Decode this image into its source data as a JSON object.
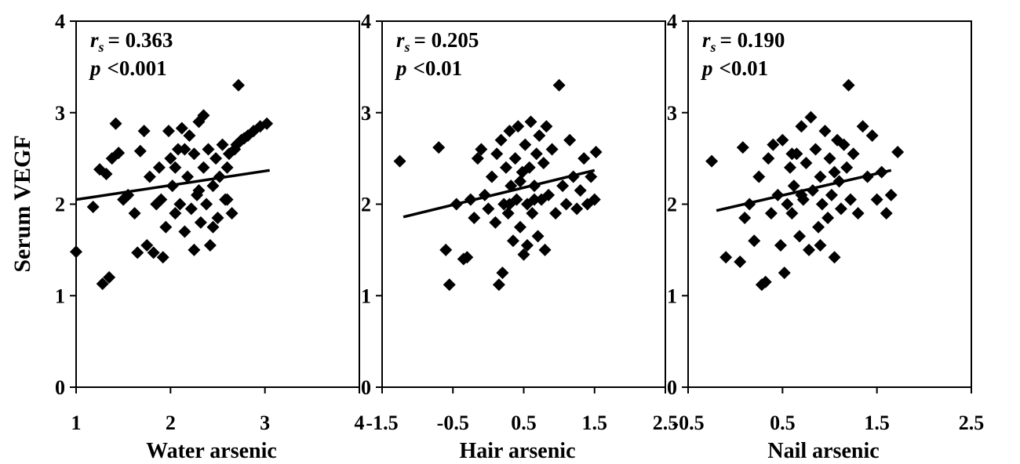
{
  "ylabel": "Serum VEGF",
  "chart_data": [
    {
      "type": "scatter",
      "xlabel": "Water arsenic",
      "xlim": [
        1,
        4
      ],
      "ylim": [
        0,
        4
      ],
      "xticks": [
        "1",
        "2",
        "3",
        "4"
      ],
      "yticks": [
        "0",
        "1",
        "2",
        "3",
        "4"
      ],
      "stats": {
        "r_symbol": "r",
        "r_sub": "s",
        "r_value": "= 0.363",
        "p_symbol": "p",
        "p_value": "<0.001"
      },
      "trendline": {
        "x": [
          1.0,
          3.05
        ],
        "y": [
          2.05,
          2.37
        ]
      },
      "points": [
        [
          1.0,
          1.48
        ],
        [
          1.18,
          1.97
        ],
        [
          1.25,
          2.38
        ],
        [
          1.28,
          1.13
        ],
        [
          1.32,
          2.33
        ],
        [
          1.35,
          1.2
        ],
        [
          1.38,
          2.5
        ],
        [
          1.42,
          2.88
        ],
        [
          1.45,
          2.56
        ],
        [
          1.5,
          2.05
        ],
        [
          1.55,
          2.1
        ],
        [
          1.62,
          1.9
        ],
        [
          1.65,
          1.47
        ],
        [
          1.68,
          2.58
        ],
        [
          1.72,
          2.8
        ],
        [
          1.75,
          1.55
        ],
        [
          1.78,
          2.3
        ],
        [
          1.82,
          1.47
        ],
        [
          1.85,
          2.0
        ],
        [
          1.88,
          2.4
        ],
        [
          1.92,
          1.42
        ],
        [
          1.95,
          1.75
        ],
        [
          1.98,
          2.8
        ],
        [
          2.0,
          2.5
        ],
        [
          2.02,
          2.2
        ],
        [
          2.05,
          1.9
        ],
        [
          2.08,
          2.6
        ],
        [
          2.1,
          2.0
        ],
        [
          2.12,
          2.83
        ],
        [
          2.15,
          1.7
        ],
        [
          2.18,
          2.3
        ],
        [
          2.2,
          2.75
        ],
        [
          2.22,
          1.95
        ],
        [
          2.25,
          2.55
        ],
        [
          2.28,
          2.1
        ],
        [
          2.3,
          2.9
        ],
        [
          2.32,
          1.8
        ],
        [
          2.35,
          2.4
        ],
        [
          2.38,
          2.0
        ],
        [
          2.4,
          2.6
        ],
        [
          2.42,
          1.55
        ],
        [
          2.45,
          2.2
        ],
        [
          2.48,
          2.5
        ],
        [
          2.5,
          1.85
        ],
        [
          2.52,
          2.3
        ],
        [
          2.55,
          2.65
        ],
        [
          2.58,
          2.05
        ],
        [
          2.6,
          2.4
        ],
        [
          2.62,
          2.55
        ],
        [
          2.65,
          1.9
        ],
        [
          2.68,
          2.6
        ],
        [
          2.7,
          2.65
        ],
        [
          2.72,
          3.3
        ],
        [
          2.75,
          2.7
        ],
        [
          2.78,
          2.72
        ],
        [
          2.82,
          2.75
        ],
        [
          2.88,
          2.8
        ],
        [
          2.95,
          2.85
        ],
        [
          3.02,
          2.88
        ],
        [
          2.25,
          1.5
        ],
        [
          2.35,
          2.97
        ],
        [
          2.15,
          2.6
        ],
        [
          1.9,
          2.05
        ],
        [
          2.05,
          2.4
        ],
        [
          2.45,
          1.75
        ],
        [
          2.6,
          2.05
        ],
        [
          2.3,
          2.15
        ]
      ]
    },
    {
      "type": "scatter",
      "xlabel": "Hair arsenic",
      "xlim": [
        -1.5,
        2.5
      ],
      "ylim": [
        0,
        4
      ],
      "xticks": [
        "-1.5",
        "-0.5",
        "0.5",
        "1.5",
        "2.5"
      ],
      "yticks": [
        "0",
        "1",
        "2",
        "3",
        "4"
      ],
      "stats": {
        "r_symbol": "r",
        "r_sub": "s",
        "r_value": "= 0.205",
        "p_symbol": "p",
        "p_value": "<0.01"
      },
      "trendline": {
        "x": [
          -1.2,
          1.5
        ],
        "y": [
          1.86,
          2.37
        ]
      },
      "points": [
        [
          -1.25,
          2.47
        ],
        [
          -0.7,
          2.62
        ],
        [
          -0.55,
          1.12
        ],
        [
          -0.6,
          1.5
        ],
        [
          -0.45,
          2.0
        ],
        [
          -0.35,
          1.4
        ],
        [
          -0.3,
          1.42
        ],
        [
          -0.2,
          1.85
        ],
        [
          -0.25,
          2.05
        ],
        [
          -0.15,
          2.5
        ],
        [
          -0.1,
          2.6
        ],
        [
          -0.05,
          2.1
        ],
        [
          0.0,
          1.95
        ],
        [
          0.05,
          2.3
        ],
        [
          0.1,
          1.8
        ],
        [
          0.12,
          2.55
        ],
        [
          0.15,
          1.12
        ],
        [
          0.18,
          2.7
        ],
        [
          0.2,
          1.25
        ],
        [
          0.22,
          2.0
        ],
        [
          0.25,
          2.4
        ],
        [
          0.28,
          1.9
        ],
        [
          0.3,
          2.8
        ],
        [
          0.32,
          2.2
        ],
        [
          0.35,
          1.6
        ],
        [
          0.38,
          2.5
        ],
        [
          0.4,
          2.05
        ],
        [
          0.42,
          2.85
        ],
        [
          0.45,
          1.75
        ],
        [
          0.48,
          2.35
        ],
        [
          0.5,
          1.45
        ],
        [
          0.52,
          2.65
        ],
        [
          0.55,
          2.0
        ],
        [
          0.58,
          2.4
        ],
        [
          0.6,
          2.9
        ],
        [
          0.62,
          1.9
        ],
        [
          0.65,
          2.2
        ],
        [
          0.68,
          2.55
        ],
        [
          0.7,
          1.65
        ],
        [
          0.72,
          2.75
        ],
        [
          0.75,
          2.05
        ],
        [
          0.78,
          2.45
        ],
        [
          0.8,
          1.5
        ],
        [
          0.82,
          2.85
        ],
        [
          0.85,
          2.1
        ],
        [
          0.9,
          2.6
        ],
        [
          0.95,
          1.9
        ],
        [
          1.0,
          3.3
        ],
        [
          1.05,
          2.2
        ],
        [
          1.1,
          2.0
        ],
        [
          1.15,
          2.7
        ],
        [
          1.2,
          2.3
        ],
        [
          1.25,
          1.95
        ],
        [
          1.3,
          2.15
        ],
        [
          1.35,
          2.5
        ],
        [
          1.4,
          2.0
        ],
        [
          1.45,
          2.3
        ],
        [
          1.5,
          2.05
        ],
        [
          1.52,
          2.57
        ],
        [
          0.45,
          2.25
        ],
        [
          0.55,
          1.55
        ],
        [
          0.3,
          2.0
        ],
        [
          0.65,
          2.05
        ]
      ]
    },
    {
      "type": "scatter",
      "xlabel": "Nail arsenic",
      "xlim": [
        -0.5,
        2.5
      ],
      "ylim": [
        0,
        4
      ],
      "xticks": [
        "-0.5",
        "0.5",
        "1.5",
        "2.5"
      ],
      "yticks": [
        "0",
        "1",
        "2",
        "3",
        "4"
      ],
      "stats": {
        "r_symbol": "r",
        "r_sub": "s",
        "r_value": "= 0.190",
        "p_symbol": "p",
        "p_value": "<0.01"
      },
      "trendline": {
        "x": [
          -0.2,
          1.65
        ],
        "y": [
          1.93,
          2.37
        ]
      },
      "points": [
        [
          -0.25,
          2.47
        ],
        [
          -0.1,
          1.42
        ],
        [
          0.05,
          1.37
        ],
        [
          0.08,
          2.62
        ],
        [
          0.1,
          1.85
        ],
        [
          0.15,
          2.0
        ],
        [
          0.2,
          1.6
        ],
        [
          0.25,
          2.3
        ],
        [
          0.28,
          1.12
        ],
        [
          0.32,
          1.15
        ],
        [
          0.35,
          2.5
        ],
        [
          0.38,
          1.9
        ],
        [
          0.4,
          2.65
        ],
        [
          0.45,
          2.1
        ],
        [
          0.48,
          1.55
        ],
        [
          0.5,
          2.7
        ],
        [
          0.52,
          1.25
        ],
        [
          0.55,
          2.0
        ],
        [
          0.58,
          2.4
        ],
        [
          0.6,
          1.9
        ],
        [
          0.62,
          2.2
        ],
        [
          0.65,
          2.55
        ],
        [
          0.68,
          1.65
        ],
        [
          0.7,
          2.85
        ],
        [
          0.72,
          2.05
        ],
        [
          0.75,
          2.45
        ],
        [
          0.78,
          1.5
        ],
        [
          0.8,
          2.95
        ],
        [
          0.82,
          2.15
        ],
        [
          0.85,
          2.6
        ],
        [
          0.88,
          1.75
        ],
        [
          0.9,
          2.3
        ],
        [
          0.92,
          2.0
        ],
        [
          0.95,
          2.8
        ],
        [
          0.98,
          1.85
        ],
        [
          1.0,
          2.5
        ],
        [
          1.02,
          2.1
        ],
        [
          1.05,
          1.42
        ],
        [
          1.08,
          2.7
        ],
        [
          1.1,
          2.25
        ],
        [
          1.12,
          1.95
        ],
        [
          1.15,
          2.65
        ],
        [
          1.18,
          2.4
        ],
        [
          1.2,
          3.3
        ],
        [
          1.22,
          2.05
        ],
        [
          1.25,
          2.55
        ],
        [
          1.3,
          1.9
        ],
        [
          1.35,
          2.85
        ],
        [
          1.4,
          2.3
        ],
        [
          1.45,
          2.75
        ],
        [
          1.5,
          2.05
        ],
        [
          1.55,
          2.35
        ],
        [
          1.6,
          1.9
        ],
        [
          1.65,
          2.1
        ],
        [
          1.72,
          2.57
        ],
        [
          0.9,
          1.55
        ],
        [
          0.7,
          2.1
        ],
        [
          1.05,
          2.35
        ],
        [
          0.6,
          2.55
        ]
      ]
    }
  ]
}
